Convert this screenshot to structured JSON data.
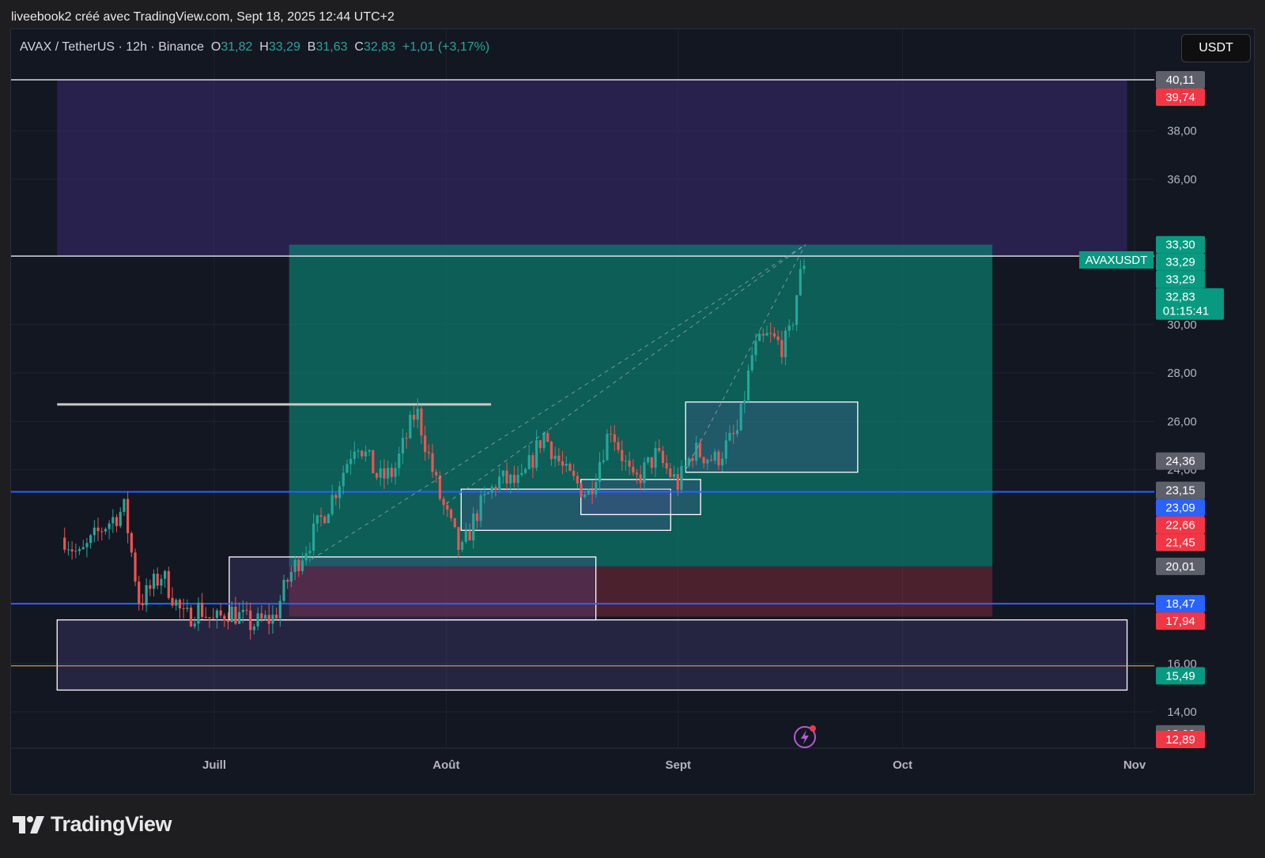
{
  "caption": "liveebook2 créé avec TradingView.com, Sept 18, 2025 12:44 UTC+2",
  "legend": {
    "symbol": "AVAX / TetherUS · 12h · Binance",
    "o_label": "O",
    "o_value": "31,82",
    "h_label": "H",
    "h_value": "33,29",
    "b_label": "B",
    "b_value": "31,63",
    "c_label": "C",
    "c_value": "32,83",
    "change": "+1,01 (+3,17%)"
  },
  "currency_button": "USDT",
  "symbol_tag": "AVAXUSDT",
  "logo_text": "TradingView",
  "colors": {
    "up": "#26a69a",
    "down": "#ef5350",
    "blue": "#2962ff",
    "gray_tag": "#5d606b",
    "red_tag": "#f23645",
    "green_tag": "#089981"
  },
  "chart_data": {
    "type": "candlestick",
    "symbol": "AVAX / TetherUS",
    "interval": "12h",
    "exchange": "Binance",
    "ylim": [
      12.5,
      42.2
    ],
    "y_ticks": [
      "14,00",
      "16,00",
      "24,00",
      "26,00",
      "28,00",
      "30,00",
      "36,00",
      "38,00"
    ],
    "x_ticks": [
      {
        "label": "Juill",
        "date": "2025-07-01"
      },
      {
        "label": "Août",
        "date": "2025-08-01"
      },
      {
        "label": "Sept",
        "date": "2025-09-01"
      },
      {
        "label": "Oct",
        "date": "2025-10-01"
      },
      {
        "label": "Nov",
        "date": "2025-11-01"
      }
    ],
    "price_tags": [
      {
        "value": 40.11,
        "text": "40,11",
        "style": "gray"
      },
      {
        "value": 39.74,
        "text": "39,74",
        "style": "red"
      },
      {
        "value": 33.3,
        "text": "33,30",
        "style": "green"
      },
      {
        "value": 33.29,
        "text": "33,29",
        "style": "green"
      },
      {
        "value": 33.29,
        "text": "33,29",
        "style": "green"
      },
      {
        "value": 32.83,
        "text": "32,83",
        "style": "green",
        "countdown": "01:15:41"
      },
      {
        "value": 24.36,
        "text": "24,36",
        "style": "gray"
      },
      {
        "value": 23.15,
        "text": "23,15",
        "style": "gray"
      },
      {
        "value": 23.09,
        "text": "23,09",
        "style": "blue"
      },
      {
        "value": 22.66,
        "text": "22,66",
        "style": "red"
      },
      {
        "value": 21.45,
        "text": "21,45",
        "style": "red"
      },
      {
        "value": 20.01,
        "text": "20,01",
        "style": "gray"
      },
      {
        "value": 18.47,
        "text": "18,47",
        "style": "blue"
      },
      {
        "value": 17.94,
        "text": "17,94",
        "style": "red"
      },
      {
        "value": 15.49,
        "text": "15,49",
        "style": "green"
      },
      {
        "value": 13.09,
        "text": "13,09",
        "style": "gray"
      },
      {
        "value": 12.89,
        "text": "12,89",
        "style": "red"
      }
    ],
    "horizontal_lines": [
      {
        "value": 40.11,
        "color": "#ffffff"
      },
      {
        "value": 32.83,
        "color": "#ffffff"
      },
      {
        "value": 23.09,
        "color": "#2962ff"
      },
      {
        "value": 18.47,
        "color": "#2962ff"
      },
      {
        "value": 15.9,
        "color": "#d4a85a"
      }
    ],
    "close_path": [
      [
        "2025-06-11",
        21.2
      ],
      [
        "2025-06-13",
        20.4
      ],
      [
        "2025-06-16",
        21.6
      ],
      [
        "2025-06-19",
        22.4
      ],
      [
        "2025-06-21",
        18.5
      ],
      [
        "2025-06-24",
        19.7
      ],
      [
        "2025-06-27",
        17.8
      ],
      [
        "2025-06-29",
        18.3
      ],
      [
        "2025-07-01",
        17.7
      ],
      [
        "2025-07-03",
        18.2
      ],
      [
        "2025-07-06",
        17.6
      ],
      [
        "2025-07-09",
        17.9
      ],
      [
        "2025-07-11",
        19.6
      ],
      [
        "2025-07-14",
        21.2
      ],
      [
        "2025-07-17",
        23.0
      ],
      [
        "2025-07-20",
        25.3
      ],
      [
        "2025-07-23",
        23.6
      ],
      [
        "2025-07-25",
        23.9
      ],
      [
        "2025-07-28",
        26.5
      ],
      [
        "2025-07-31",
        23.0
      ],
      [
        "2025-08-03",
        20.5
      ],
      [
        "2025-08-05",
        22.2
      ],
      [
        "2025-08-08",
        23.6
      ],
      [
        "2025-08-11",
        23.4
      ],
      [
        "2025-08-14",
        25.5
      ],
      [
        "2025-08-17",
        23.8
      ],
      [
        "2025-08-20",
        23.0
      ],
      [
        "2025-08-23",
        25.8
      ],
      [
        "2025-08-26",
        23.4
      ],
      [
        "2025-08-29",
        24.6
      ],
      [
        "2025-09-01",
        23.4
      ],
      [
        "2025-09-03",
        24.8
      ],
      [
        "2025-09-06",
        24.4
      ],
      [
        "2025-09-09",
        25.6
      ],
      [
        "2025-09-11",
        28.9
      ],
      [
        "2025-09-13",
        29.5
      ],
      [
        "2025-09-15",
        29.1
      ],
      [
        "2025-09-16",
        29.6
      ],
      [
        "2025-09-17",
        31.6
      ],
      [
        "2025-09-18",
        32.83
      ]
    ],
    "zones": [
      {
        "kind": "purple",
        "date_from": "2025-06-10",
        "date_to": "2025-10-31",
        "price_from": 32.83,
        "price_to": 40.11
      },
      {
        "kind": "green",
        "date_from": "2025-07-11",
        "date_to": "2025-10-13",
        "price_from": 20.01,
        "price_to": 33.3
      },
      {
        "kind": "red",
        "date_from": "2025-07-11",
        "date_to": "2025-10-13",
        "price_from": 17.94,
        "price_to": 20.01
      },
      {
        "kind": "box",
        "date_from": "2025-07-03",
        "date_to": "2025-08-21",
        "price_from": 17.8,
        "price_to": 20.4
      },
      {
        "kind": "box",
        "date_from": "2025-08-03",
        "date_to": "2025-08-31",
        "price_from": 21.5,
        "price_to": 23.2
      },
      {
        "kind": "box",
        "date_from": "2025-08-19",
        "date_to": "2025-09-04",
        "price_from": 22.15,
        "price_to": 23.6
      },
      {
        "kind": "box",
        "date_from": "2025-09-02",
        "date_to": "2025-09-25",
        "price_from": 23.9,
        "price_to": 26.8
      },
      {
        "kind": "box",
        "date_from": "2025-06-10",
        "date_to": "2025-10-31",
        "price_from": 14.9,
        "price_to": 17.8
      },
      {
        "kind": "level",
        "date_from": "2025-06-10",
        "date_to": "2025-08-07",
        "price_from": 26.7,
        "price_to": 26.7
      }
    ]
  }
}
